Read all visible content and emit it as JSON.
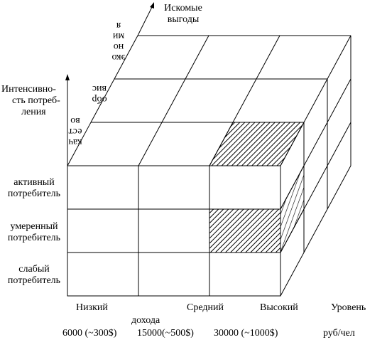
{
  "axis_interest": {
    "label_line1": "Искомые",
    "label_line2": "выгоды"
  },
  "axis_intensity": {
    "label_line1": "Интенсивно-",
    "label_line2": "сть потреб-",
    "label_line3": "ления"
  },
  "axis_income": {
    "label_line1": "Уровень",
    "label_line2": "дохода",
    "unit": "руб/чел"
  },
  "rows": [
    {
      "line1": "активный",
      "line2": "потребитель"
    },
    {
      "line1": "умеренный",
      "line2": "потребитель"
    },
    {
      "line1": "слабый",
      "line2": "потребитель"
    }
  ],
  "columns": [
    {
      "label": "Низкий",
      "value": "6000 (~300$)"
    },
    {
      "label": "Средний",
      "value": "15000(~500$)"
    },
    {
      "label": "Высокий",
      "value": "30000 (~1000$)"
    }
  ],
  "depth_labels": {
    "back": {
      "line1": "эко",
      "line2": "но",
      "line3": "ми",
      "line4": "я"
    },
    "middle": {
      "line1": "обр",
      "line2": "вис"
    },
    "front": {
      "line1": "кач",
      "line2": "ест",
      "line3": "во"
    }
  },
  "highlighted_segments": [
    "Высокий / умеренный потребитель / качество"
  ]
}
